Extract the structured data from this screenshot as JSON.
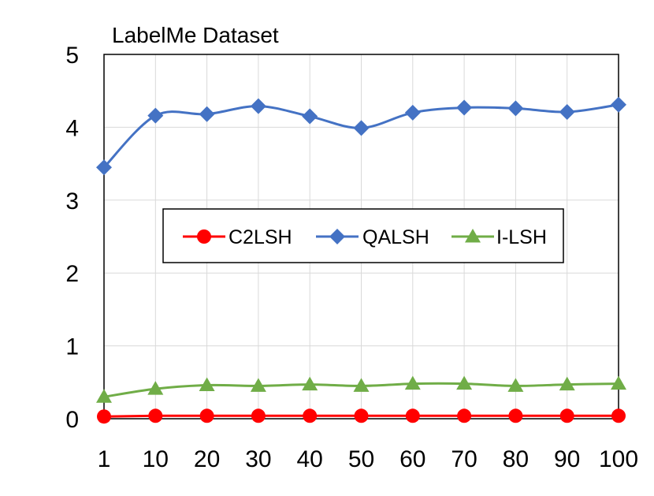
{
  "chart_data": {
    "type": "line",
    "title": "LabelMe Dataset",
    "xlabel": "",
    "ylabel": "",
    "categories": [
      "1",
      "10",
      "20",
      "30",
      "40",
      "50",
      "60",
      "70",
      "80",
      "90",
      "100"
    ],
    "ylim": [
      0,
      5
    ],
    "yticks": [
      "0",
      "1",
      "2",
      "3",
      "4",
      "5"
    ],
    "grid": true,
    "legend_position": "center-left",
    "series": [
      {
        "name": "C2LSH",
        "color": "#ff0000",
        "marker": "circle",
        "values": [
          0.03,
          0.04,
          0.04,
          0.04,
          0.04,
          0.04,
          0.04,
          0.04,
          0.04,
          0.04,
          0.04
        ]
      },
      {
        "name": "QALSH",
        "color": "#4472c4",
        "marker": "diamond",
        "values": [
          3.45,
          4.16,
          4.18,
          4.29,
          4.15,
          3.99,
          4.2,
          4.27,
          4.26,
          4.21,
          4.31
        ]
      },
      {
        "name": "I-LSH",
        "color": "#70ad47",
        "marker": "triangle",
        "values": [
          0.3,
          0.41,
          0.46,
          0.45,
          0.47,
          0.45,
          0.48,
          0.48,
          0.45,
          0.47,
          0.48
        ]
      }
    ]
  }
}
